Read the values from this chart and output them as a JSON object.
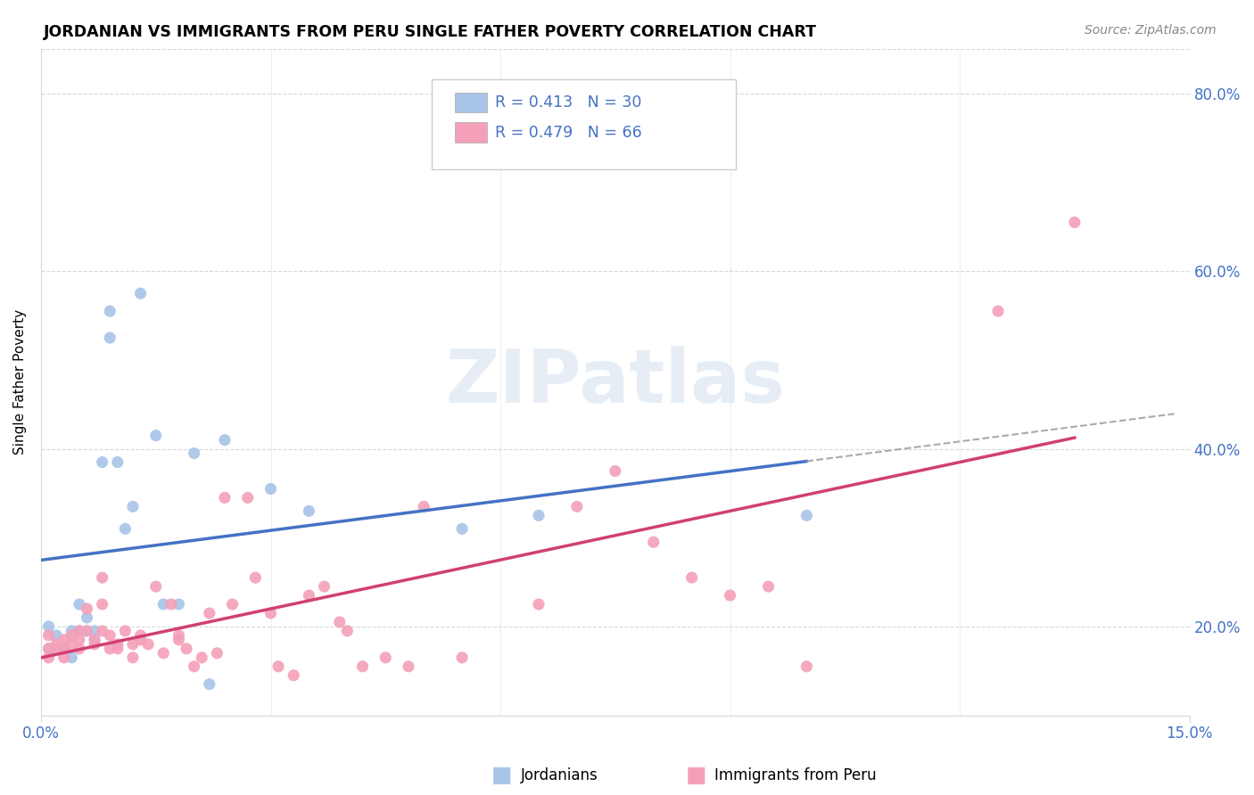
{
  "title": "JORDANIAN VS IMMIGRANTS FROM PERU SINGLE FATHER POVERTY CORRELATION CHART",
  "source": "Source: ZipAtlas.com",
  "ylabel": "Single Father Poverty",
  "x_range": [
    0.0,
    0.15
  ],
  "y_range": [
    0.1,
    0.85
  ],
  "jordanian_R": 0.413,
  "jordanian_N": 30,
  "peru_R": 0.479,
  "peru_N": 66,
  "jordanian_color": "#a8c4e8",
  "peru_color": "#f4a0b8",
  "jordanian_line_color": "#4472c4",
  "peru_line_color": "#d04070",
  "dashed_line_color": "#aaaaaa",
  "legend_label_1": "Jordanians",
  "legend_label_2": "Immigrants from Peru",
  "watermark": "ZIPatlas",
  "grid_color": "#d8d8d8",
  "label_color": "#4472c4",
  "jordanian_x": [
    0.001,
    0.001,
    0.002,
    0.003,
    0.004,
    0.004,
    0.005,
    0.005,
    0.006,
    0.006,
    0.007,
    0.007,
    0.008,
    0.009,
    0.009,
    0.01,
    0.011,
    0.012,
    0.013,
    0.015,
    0.016,
    0.018,
    0.02,
    0.022,
    0.024,
    0.03,
    0.035,
    0.055,
    0.065,
    0.1
  ],
  "jordanian_y": [
    0.2,
    0.175,
    0.19,
    0.175,
    0.195,
    0.165,
    0.225,
    0.195,
    0.21,
    0.195,
    0.195,
    0.185,
    0.385,
    0.525,
    0.555,
    0.385,
    0.31,
    0.335,
    0.575,
    0.415,
    0.225,
    0.225,
    0.395,
    0.135,
    0.41,
    0.355,
    0.33,
    0.31,
    0.325,
    0.325
  ],
  "peru_x": [
    0.001,
    0.001,
    0.001,
    0.002,
    0.002,
    0.003,
    0.003,
    0.003,
    0.004,
    0.004,
    0.005,
    0.005,
    0.005,
    0.006,
    0.006,
    0.007,
    0.007,
    0.008,
    0.008,
    0.008,
    0.009,
    0.009,
    0.01,
    0.01,
    0.011,
    0.012,
    0.012,
    0.013,
    0.013,
    0.014,
    0.015,
    0.016,
    0.017,
    0.018,
    0.018,
    0.019,
    0.02,
    0.021,
    0.022,
    0.023,
    0.024,
    0.025,
    0.027,
    0.028,
    0.03,
    0.031,
    0.033,
    0.035,
    0.037,
    0.039,
    0.04,
    0.042,
    0.045,
    0.048,
    0.05,
    0.055,
    0.065,
    0.07,
    0.075,
    0.08,
    0.085,
    0.09,
    0.095,
    0.1,
    0.125,
    0.135
  ],
  "peru_y": [
    0.175,
    0.19,
    0.165,
    0.18,
    0.175,
    0.175,
    0.185,
    0.165,
    0.19,
    0.18,
    0.195,
    0.185,
    0.175,
    0.195,
    0.22,
    0.18,
    0.185,
    0.255,
    0.225,
    0.195,
    0.175,
    0.19,
    0.18,
    0.175,
    0.195,
    0.18,
    0.165,
    0.185,
    0.19,
    0.18,
    0.245,
    0.17,
    0.225,
    0.19,
    0.185,
    0.175,
    0.155,
    0.165,
    0.215,
    0.17,
    0.345,
    0.225,
    0.345,
    0.255,
    0.215,
    0.155,
    0.145,
    0.235,
    0.245,
    0.205,
    0.195,
    0.155,
    0.165,
    0.155,
    0.335,
    0.165,
    0.225,
    0.335,
    0.375,
    0.295,
    0.255,
    0.235,
    0.245,
    0.155,
    0.555,
    0.655
  ],
  "ytick_vals": [
    0.2,
    0.4,
    0.6,
    0.8
  ],
  "ytick_labels": [
    "20.0%",
    "40.0%",
    "60.0%",
    "80.0%"
  ],
  "xtick_vals": [
    0.0,
    0.15
  ],
  "xtick_labels": [
    "0.0%",
    "15.0%"
  ]
}
